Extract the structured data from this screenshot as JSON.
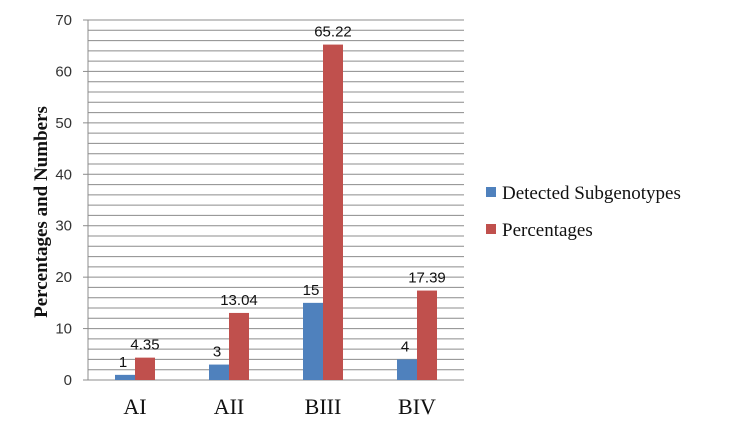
{
  "chart_data": {
    "type": "bar",
    "title": "",
    "xlabel": "",
    "ylabel": "Percentages and Numbers",
    "ylim": [
      0,
      70
    ],
    "yticks": [
      0,
      10,
      20,
      30,
      40,
      50,
      60,
      70
    ],
    "minor_grid_step": 2,
    "grid": true,
    "legend_position": "right",
    "categories": [
      "AI",
      "AII",
      "BIII",
      "BIV"
    ],
    "series": [
      {
        "name": "Detected Subgenotypes",
        "values": [
          1,
          3,
          15,
          4
        ],
        "labels": [
          "1",
          "3",
          "15",
          "4"
        ],
        "color": "#4f81bd"
      },
      {
        "name": "Percentages",
        "values": [
          4.35,
          13.04,
          65.22,
          17.39
        ],
        "labels": [
          "4.35",
          "13.04",
          "65.22",
          "17.39"
        ],
        "color": "#c0504d"
      }
    ]
  }
}
